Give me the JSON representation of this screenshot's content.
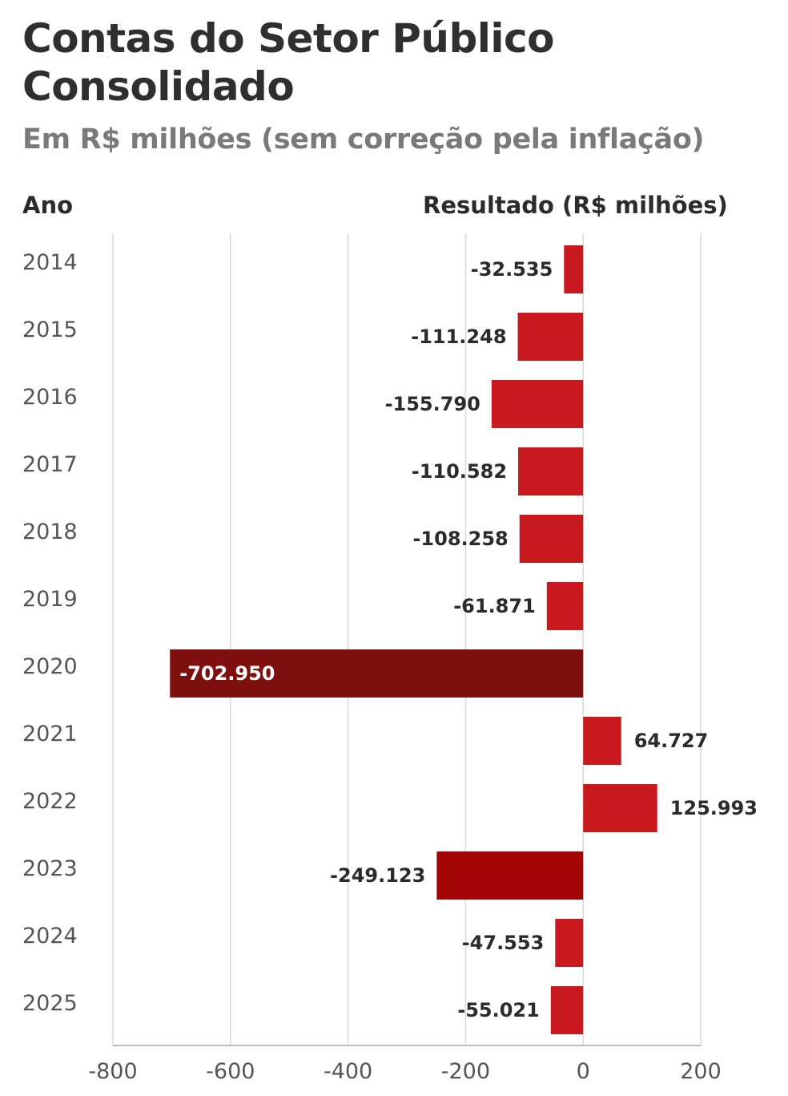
{
  "chart_data": {
    "type": "bar",
    "orientation": "horizontal",
    "title": "Contas do Setor Público Consolidado",
    "subtitle": "Em R$ milhões (sem correção pela inflação)",
    "category_header": "Ano",
    "value_header": "Resultado (R$ milhões)",
    "categories": [
      "2014",
      "2015",
      "2016",
      "2017",
      "2018",
      "2019",
      "2020",
      "2021",
      "2022",
      "2023",
      "2024",
      "2025"
    ],
    "values": [
      -32.535,
      -111.248,
      -155.79,
      -110.582,
      -108.258,
      -61.871,
      -702.95,
      64.727,
      125.993,
      -249.123,
      -47.553,
      -55.021
    ],
    "value_labels": [
      "-32.535",
      "-111.248",
      "-155.790",
      "-110.582",
      "-108.258",
      "-61.871",
      "-702.950",
      "64.727",
      "125.993",
      "-249.123",
      "-47.553",
      "-55.021"
    ],
    "bar_colors": [
      "#c8191e",
      "#c8191e",
      "#c8191e",
      "#c8191e",
      "#c8191e",
      "#c8191e",
      "#7d0f0f",
      "#c8191e",
      "#c8191e",
      "#a30505",
      "#c8191e",
      "#c8191e"
    ],
    "xlim": [
      -800,
      200
    ],
    "xticks": [
      -800,
      -600,
      -400,
      -200,
      0,
      200
    ],
    "xtick_labels": [
      "-800",
      "-600",
      "-400",
      "-200",
      "0",
      "200"
    ],
    "grid": true
  }
}
